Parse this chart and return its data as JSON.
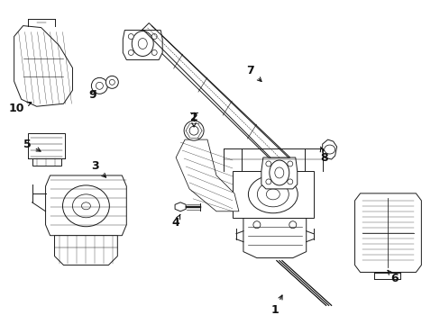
{
  "background_color": "#ffffff",
  "figsize": [
    4.89,
    3.6
  ],
  "dpi": 100,
  "image_b64": ""
}
